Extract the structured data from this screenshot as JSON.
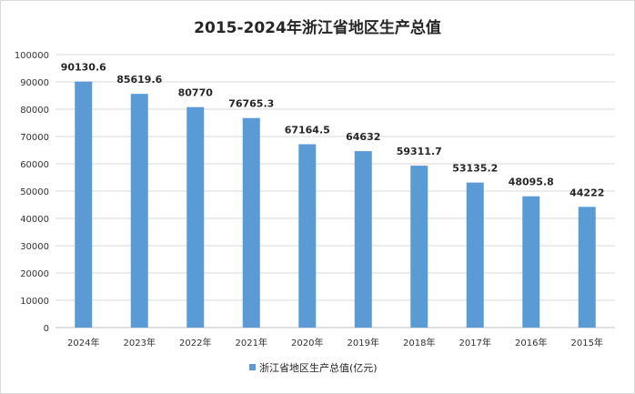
{
  "chart_data": {
    "type": "bar",
    "title": "2015-2024年浙江省地区生产总值",
    "xlabel": "",
    "ylabel": "",
    "categories": [
      "2024年",
      "2023年",
      "2022年",
      "2021年",
      "2020年",
      "2019年",
      "2018年",
      "2017年",
      "2016年",
      "2015年"
    ],
    "series": [
      {
        "name": "浙江省地区生产总值(亿元)",
        "values": [
          90130.6,
          85619.6,
          80770,
          76765.3,
          67164.5,
          64632,
          59311.7,
          53135.2,
          48095.8,
          44222
        ],
        "labels": [
          "90130.6",
          "85619.6",
          "80770",
          "76765.3",
          "67164.5",
          "64632",
          "59311.7",
          "53135.2",
          "48095.8",
          "44222"
        ],
        "color": "#5b9bd5"
      }
    ],
    "yticks": [
      "0",
      "10000",
      "20000",
      "30000",
      "40000",
      "50000",
      "60000",
      "70000",
      "80000",
      "90000",
      "100000"
    ],
    "ylim": [
      0,
      100000
    ],
    "grid": true,
    "legend_position": "bottom"
  },
  "colors": {
    "bar": "#5b9bd5",
    "grid": "#d9d9d9",
    "axis": "#bfbfbf"
  }
}
